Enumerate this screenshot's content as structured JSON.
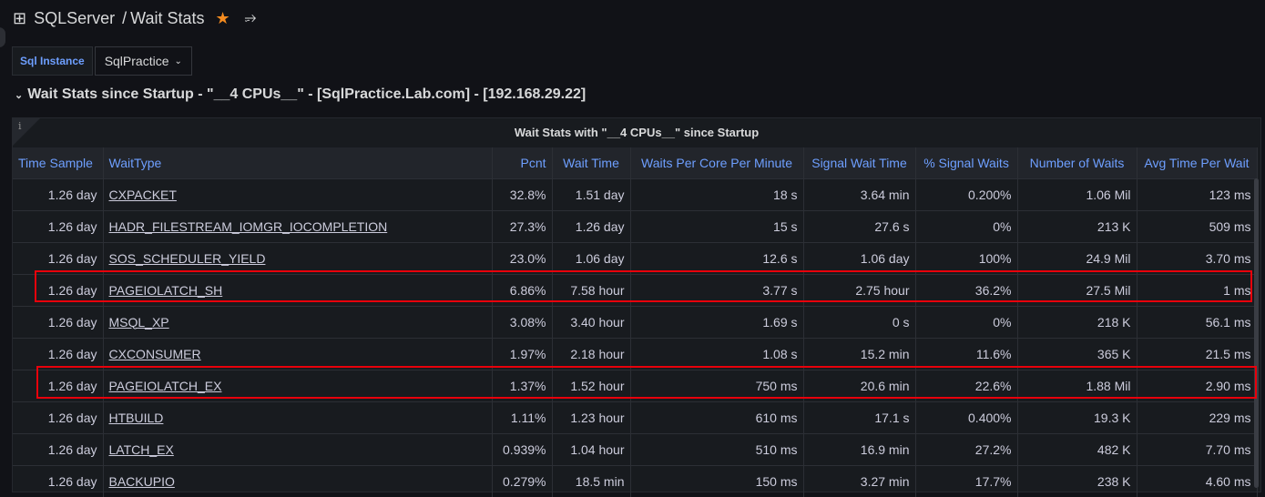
{
  "header": {
    "app": "SQLServer",
    "separator": "/",
    "dashboard": "Wait Stats",
    "grid_icon": "apps-grid-icon",
    "star_icon": "star-icon",
    "share_icon": "share-icon"
  },
  "variables": {
    "label": "Sql Instance",
    "value": "SqlPractice"
  },
  "row": {
    "title": "Wait Stats since Startup - \"__4 CPUs__\" - [SqlPractice.Lab.com] - [192.168.29.22]"
  },
  "panel": {
    "info": "i",
    "title": "Wait Stats with \"__4 CPUs__\" since Startup",
    "columns": [
      "Time Sample",
      "WaitType",
      "Pcnt",
      "Wait Time",
      "Waits Per Core Per Minute",
      "Signal Wait Time",
      "% Signal Waits",
      "Number of Waits",
      "Avg Time Per Wait"
    ],
    "rows": [
      [
        "1.26 day",
        "CXPACKET",
        "32.8%",
        "1.51 day",
        "18 s",
        "3.64 min",
        "0.200%",
        "1.06 Mil",
        "123 ms"
      ],
      [
        "1.26 day",
        "HADR_FILESTREAM_IOMGR_IOCOMPLETION",
        "27.3%",
        "1.26 day",
        "15 s",
        "27.6 s",
        "0%",
        "213 K",
        "509 ms"
      ],
      [
        "1.26 day",
        "SOS_SCHEDULER_YIELD",
        "23.0%",
        "1.06 day",
        "12.6 s",
        "1.06 day",
        "100%",
        "24.9 Mil",
        "3.70 ms"
      ],
      [
        "1.26 day",
        "PAGEIOLATCH_SH",
        "6.86%",
        "7.58 hour",
        "3.77 s",
        "2.75 hour",
        "36.2%",
        "27.5 Mil",
        "1 ms"
      ],
      [
        "1.26 day",
        "MSQL_XP",
        "3.08%",
        "3.40 hour",
        "1.69 s",
        "0 s",
        "0%",
        "218 K",
        "56.1 ms"
      ],
      [
        "1.26 day",
        "CXCONSUMER",
        "1.97%",
        "2.18 hour",
        "1.08 s",
        "15.2 min",
        "11.6%",
        "365 K",
        "21.5 ms"
      ],
      [
        "1.26 day",
        "PAGEIOLATCH_EX",
        "1.37%",
        "1.52 hour",
        "750 ms",
        "20.6 min",
        "22.6%",
        "1.88 Mil",
        "2.90 ms"
      ],
      [
        "1.26 day",
        "HTBUILD",
        "1.11%",
        "1.23 hour",
        "610 ms",
        "17.1 s",
        "0.400%",
        "19.3 K",
        "229 ms"
      ],
      [
        "1.26 day",
        "LATCH_EX",
        "0.939%",
        "1.04 hour",
        "510 ms",
        "16.9 min",
        "27.2%",
        "482 K",
        "7.70 ms"
      ],
      [
        "1.26 day",
        "BACKUPIO",
        "0.279%",
        "18.5 min",
        "150 ms",
        "3.27 min",
        "17.7%",
        "238 K",
        "4.60 ms"
      ]
    ],
    "highlighted_rows": [
      "PAGEIOLATCH_SH",
      "PAGEIOLATCH_EX"
    ],
    "highlight_color": "#e8000b"
  }
}
